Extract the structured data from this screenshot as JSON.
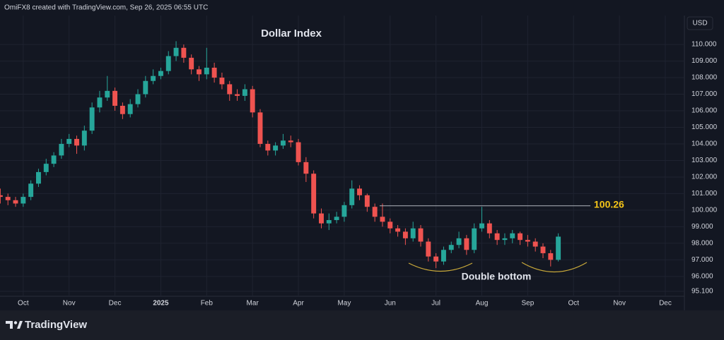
{
  "header": "OmiFX8 created with TradingView.com, Sep 26, 2025 06:55 UTC",
  "brand": "TradingView",
  "chart_data": {
    "type": "candlestick",
    "title": "Dollar Index",
    "currency": "USD",
    "categories": [
      null,
      null,
      null,
      "Oct",
      null,
      null,
      null,
      null,
      null,
      "Nov",
      null,
      null,
      null,
      null,
      null,
      "Dec",
      null,
      null,
      null,
      null,
      null,
      "2025",
      null,
      null,
      null,
      null,
      null,
      "Feb",
      null,
      null,
      null,
      null,
      null,
      "Mar",
      null,
      null,
      null,
      null,
      null,
      "Apr",
      null,
      null,
      null,
      null,
      null,
      "May",
      null,
      null,
      null,
      null,
      null,
      "Jun",
      null,
      null,
      null,
      null,
      null,
      "Jul",
      null,
      null,
      null,
      null,
      null,
      "Aug",
      null,
      null,
      null,
      null,
      null,
      "Sep",
      null,
      null,
      null,
      null,
      null,
      "Oct",
      null,
      null,
      null,
      null,
      null,
      "Nov",
      null,
      null,
      null,
      null,
      null,
      "Dec",
      null,
      null
    ],
    "open": [
      100.9,
      100.8,
      100.6,
      100.4,
      100.8,
      101.6,
      102.3,
      102.8,
      103.3,
      104.0,
      104.3,
      103.9,
      104.8,
      106.2,
      106.8,
      107.2,
      106.3,
      105.8,
      106.4,
      107.0,
      107.8,
      108.1,
      108.4,
      109.3,
      109.8,
      109.2,
      108.5,
      108.2,
      108.6,
      108.0,
      107.6,
      107.0,
      106.9,
      107.3,
      105.9,
      104.0,
      103.6,
      103.9,
      104.2,
      104.1,
      102.9,
      102.2,
      99.8,
      99.2,
      99.4,
      99.6,
      100.3,
      101.3,
      100.9,
      100.2,
      99.6,
      99.3,
      98.9,
      98.7,
      98.3,
      98.9,
      98.1,
      97.2,
      96.9,
      97.6,
      97.9,
      98.3,
      97.6,
      98.9,
      99.2,
      98.6,
      98.2,
      98.3,
      98.6,
      98.2,
      98.1,
      97.8,
      97.4,
      97.0,
      null,
      null,
      null,
      null,
      null,
      null,
      null,
      null,
      null,
      null,
      null,
      null,
      null,
      null,
      null,
      null
    ],
    "high": [
      101.3,
      101.0,
      100.8,
      101.0,
      101.8,
      102.5,
      103.1,
      103.5,
      104.3,
      104.6,
      104.5,
      105.1,
      106.5,
      107.2,
      108.1,
      107.4,
      106.5,
      106.7,
      107.3,
      108.1,
      108.5,
      108.6,
      109.6,
      110.2,
      110.0,
      109.4,
      108.7,
      109.8,
      108.9,
      108.3,
      107.8,
      107.3,
      107.6,
      107.5,
      106.1,
      104.2,
      104.1,
      104.6,
      104.5,
      104.3,
      103.2,
      102.4,
      100.1,
      99.8,
      99.9,
      100.5,
      101.8,
      101.5,
      101.0,
      100.4,
      100.4,
      99.5,
      99.1,
      98.9,
      99.3,
      99.1,
      98.3,
      97.4,
      97.8,
      98.1,
      98.7,
      98.5,
      99.2,
      100.2,
      99.4,
      98.8,
      98.6,
      98.8,
      98.7,
      98.5,
      98.3,
      98.0,
      97.6,
      98.6,
      null,
      null,
      null,
      null,
      null,
      null,
      null,
      null,
      null,
      null,
      null,
      null,
      null,
      null,
      null,
      null
    ],
    "low": [
      100.4,
      100.3,
      100.2,
      100.2,
      100.6,
      101.4,
      102.1,
      102.6,
      103.1,
      103.8,
      103.4,
      103.6,
      104.6,
      105.9,
      106.6,
      106.0,
      105.5,
      105.6,
      106.2,
      106.8,
      107.6,
      107.9,
      108.2,
      109.0,
      108.9,
      108.2,
      107.8,
      107.9,
      107.7,
      107.3,
      106.6,
      106.6,
      106.6,
      105.6,
      103.8,
      103.3,
      103.3,
      103.7,
      103.8,
      102.7,
      101.7,
      99.5,
      98.9,
      98.8,
      99.2,
      99.3,
      100.1,
      100.6,
      99.9,
      99.3,
      99.0,
      98.6,
      98.4,
      97.9,
      98.1,
      97.8,
      96.9,
      96.5,
      96.7,
      97.4,
      97.7,
      97.3,
      97.4,
      98.7,
      98.3,
      97.9,
      97.9,
      98.0,
      97.9,
      97.8,
      97.5,
      97.1,
      96.6,
      96.9,
      null,
      null,
      null,
      null,
      null,
      null,
      null,
      null,
      null,
      null,
      null,
      null,
      null,
      null,
      null,
      null
    ],
    "close": [
      100.8,
      100.6,
      100.4,
      100.8,
      101.6,
      102.3,
      102.8,
      103.3,
      104.0,
      104.3,
      103.9,
      104.8,
      106.2,
      106.8,
      107.2,
      106.3,
      105.8,
      106.4,
      107.0,
      107.8,
      108.1,
      108.4,
      109.3,
      109.8,
      109.2,
      108.5,
      108.2,
      108.6,
      108.0,
      107.6,
      107.0,
      106.9,
      107.3,
      105.9,
      104.0,
      103.6,
      103.9,
      104.2,
      104.1,
      102.9,
      102.2,
      99.8,
      99.2,
      99.4,
      99.6,
      100.3,
      101.3,
      100.9,
      100.2,
      99.6,
      99.3,
      98.9,
      98.7,
      98.3,
      98.9,
      98.1,
      97.2,
      96.9,
      97.6,
      97.9,
      98.3,
      97.6,
      98.9,
      99.2,
      98.6,
      98.2,
      98.3,
      98.6,
      98.2,
      98.1,
      97.8,
      97.4,
      97.0,
      98.4,
      null,
      null,
      null,
      null,
      null,
      null,
      null,
      null,
      null,
      null,
      null,
      null,
      null,
      null,
      null,
      null
    ],
    "ylim": [
      94.8,
      111.75
    ],
    "yticks": [
      {
        "value": 95.1,
        "label": "95.100"
      },
      {
        "value": 96,
        "label": "96.000"
      },
      {
        "value": 97,
        "label": "97.000"
      },
      {
        "value": 98,
        "label": "98.000"
      },
      {
        "value": 99,
        "label": "99.000"
      },
      {
        "value": 100,
        "label": "100.000"
      },
      {
        "value": 101,
        "label": "101.000"
      },
      {
        "value": 102,
        "label": "102.000"
      },
      {
        "value": 103,
        "label": "103.000"
      },
      {
        "value": 104,
        "label": "104.000"
      },
      {
        "value": 105,
        "label": "105.000"
      },
      {
        "value": 106,
        "label": "106.000"
      },
      {
        "value": 107,
        "label": "107.000"
      },
      {
        "value": 108,
        "label": "108.000"
      },
      {
        "value": 109,
        "label": "109.000"
      },
      {
        "value": 110,
        "label": "110.000"
      }
    ],
    "grid": true,
    "up_color": "#26a69a",
    "down_color": "#ef5350",
    "level": 100.26,
    "level_color": "#f5c518",
    "pattern_label": "Double bottom"
  }
}
